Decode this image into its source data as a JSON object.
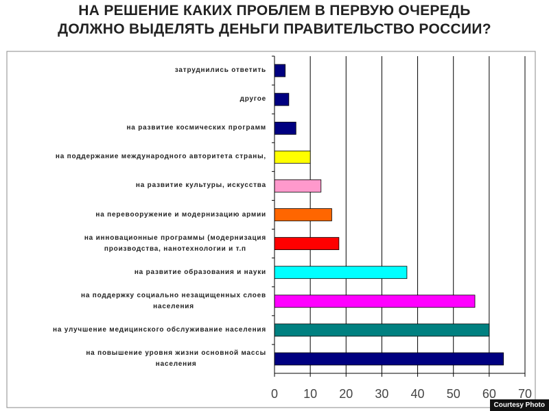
{
  "chart_data": {
    "type": "barh",
    "title": [
      "НА РЕШЕНИЕ КАКИХ ПРОБЛЕМ В ПЕРВУЮ ОЧЕРЕДЬ",
      "ДОЛЖНО ВЫДЕЛЯТЬ ДЕНЬГИ ПРАВИТЕЛЬСТВО РОССИИ?"
    ],
    "categories": [
      "затруднились ответить",
      "другое",
      "на развитие космических программ",
      "на поддержание международного авторитета страны,",
      "на развитие культуры, искусства",
      "на перевооружение и модернизацию армии",
      "на инновационные программы (модернизация\nпроизводства, нанотехнологии и т.п",
      "на развитие образования и науки",
      "на поддержку социально незащищенных слоев\nнаселения",
      "на улучшение медицинского обслуживание населения",
      "на повышение уровня жизни основной массы\nнаселения"
    ],
    "values": [
      3,
      4,
      6,
      10,
      13,
      16,
      18,
      37,
      56,
      60,
      64
    ],
    "colors": [
      "#000080",
      "#000080",
      "#000080",
      "#ffff00",
      "#ff99cc",
      "#ff6600",
      "#ff0000",
      "#00ffff",
      "#ff00ff",
      "#008080",
      "#000080"
    ],
    "xlim": [
      0,
      70
    ],
    "xticks": [
      0,
      10,
      20,
      30,
      40,
      50,
      60,
      70
    ],
    "grid": true,
    "credit": "Courtesy Photo"
  }
}
